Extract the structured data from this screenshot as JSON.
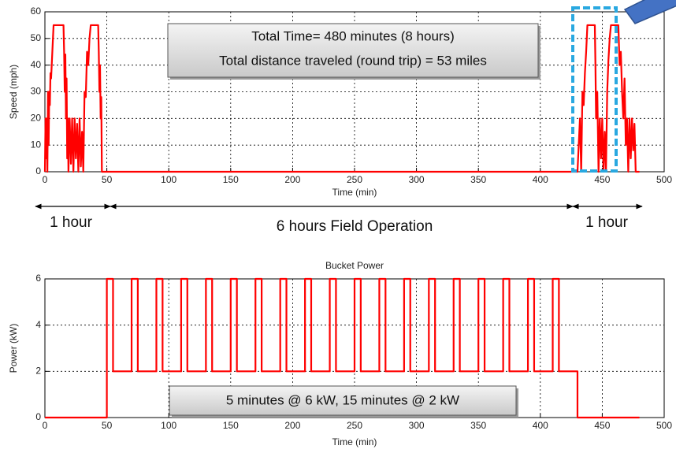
{
  "chart_data": [
    {
      "type": "line",
      "x_label": "Time (min)",
      "y_label": "Speed (mph)",
      "xlim": [
        0,
        500
      ],
      "ylim": [
        0,
        60
      ],
      "xticks": [
        0,
        50,
        100,
        150,
        200,
        250,
        300,
        350,
        400,
        450,
        500
      ],
      "yticks": [
        0,
        10,
        20,
        30,
        40,
        50,
        60
      ],
      "grid": true,
      "color": "#ff0000",
      "notes": [
        "Total Time= 480 minutes (8 hours)",
        "Total distance traveled (round trip) = 53 miles"
      ],
      "annotations": [
        "1 hour",
        "6 hours Field Operation",
        "1 hour"
      ],
      "x": [
        0,
        0.5,
        1,
        1.5,
        2,
        2.5,
        3,
        3.5,
        4,
        4.5,
        5,
        6,
        7,
        15,
        15.5,
        16,
        16.5,
        17,
        17.5,
        18,
        18.5,
        19,
        20,
        21,
        22,
        23,
        24,
        25,
        26,
        27,
        28,
        29,
        30,
        31,
        32,
        33,
        34,
        35,
        36,
        37,
        43,
        43.5,
        44,
        44.5,
        45,
        45.5,
        46,
        47,
        430,
        431,
        432,
        433,
        434,
        435,
        436,
        437,
        438,
        444,
        444.5,
        445,
        446,
        447,
        448,
        449,
        450,
        451,
        452,
        453,
        454,
        455,
        456,
        457,
        463,
        464,
        465,
        466,
        467,
        468,
        469,
        470,
        471,
        472,
        473,
        474,
        475,
        476,
        477,
        480
      ],
      "values": [
        0,
        20,
        5,
        20,
        0,
        30,
        10,
        30,
        25,
        37,
        35,
        45,
        55,
        55,
        45,
        30,
        44,
        20,
        35,
        5,
        20,
        0,
        20,
        3,
        20,
        0,
        20,
        5,
        18,
        0,
        20,
        2,
        15,
        0,
        30,
        28,
        45,
        40,
        50,
        55,
        55,
        45,
        30,
        40,
        20,
        28,
        0,
        0,
        0,
        10,
        20,
        0,
        30,
        25,
        37,
        45,
        55,
        55,
        40,
        20,
        30,
        0,
        20,
        5,
        20,
        0,
        15,
        0,
        30,
        42,
        50,
        55,
        55,
        40,
        45,
        30,
        20,
        35,
        10,
        20,
        0,
        20,
        5,
        20,
        8,
        18,
        0,
        0
      ]
    },
    {
      "type": "line",
      "title": "Bucket Power",
      "x_label": "Time (min)",
      "y_label": "Power (kW)",
      "xlim": [
        0,
        500
      ],
      "ylim": [
        0,
        6
      ],
      "xticks": [
        0,
        50,
        100,
        150,
        200,
        250,
        300,
        350,
        400,
        450,
        500
      ],
      "yticks": [
        0,
        2,
        4,
        6
      ],
      "grid": true,
      "color": "#ff0000",
      "notes": [
        "5 minutes @ 6 kW, 15 minutes @ 2 kW"
      ],
      "x": [
        0,
        50,
        50,
        55,
        55,
        70,
        70,
        75,
        75,
        90,
        90,
        95,
        95,
        110,
        110,
        115,
        115,
        130,
        130,
        135,
        135,
        150,
        150,
        155,
        155,
        170,
        170,
        175,
        175,
        190,
        190,
        195,
        195,
        210,
        210,
        215,
        215,
        230,
        230,
        235,
        235,
        250,
        250,
        255,
        255,
        270,
        270,
        275,
        275,
        290,
        290,
        295,
        295,
        310,
        310,
        315,
        315,
        330,
        330,
        335,
        335,
        350,
        350,
        355,
        355,
        370,
        370,
        375,
        375,
        390,
        390,
        395,
        395,
        410,
        410,
        415,
        415,
        430,
        430,
        480
      ],
      "values": [
        0,
        0,
        6,
        6,
        2,
        2,
        6,
        6,
        2,
        2,
        6,
        6,
        2,
        2,
        6,
        6,
        2,
        2,
        6,
        6,
        2,
        2,
        6,
        6,
        2,
        2,
        6,
        6,
        2,
        2,
        6,
        6,
        2,
        2,
        6,
        6,
        2,
        2,
        6,
        6,
        2,
        2,
        6,
        6,
        2,
        2,
        6,
        6,
        2,
        2,
        6,
        6,
        2,
        2,
        6,
        6,
        2,
        2,
        6,
        6,
        2,
        2,
        6,
        6,
        2,
        2,
        6,
        6,
        2,
        2,
        6,
        6,
        2,
        2,
        6,
        6,
        2,
        2,
        0,
        0
      ]
    }
  ]
}
